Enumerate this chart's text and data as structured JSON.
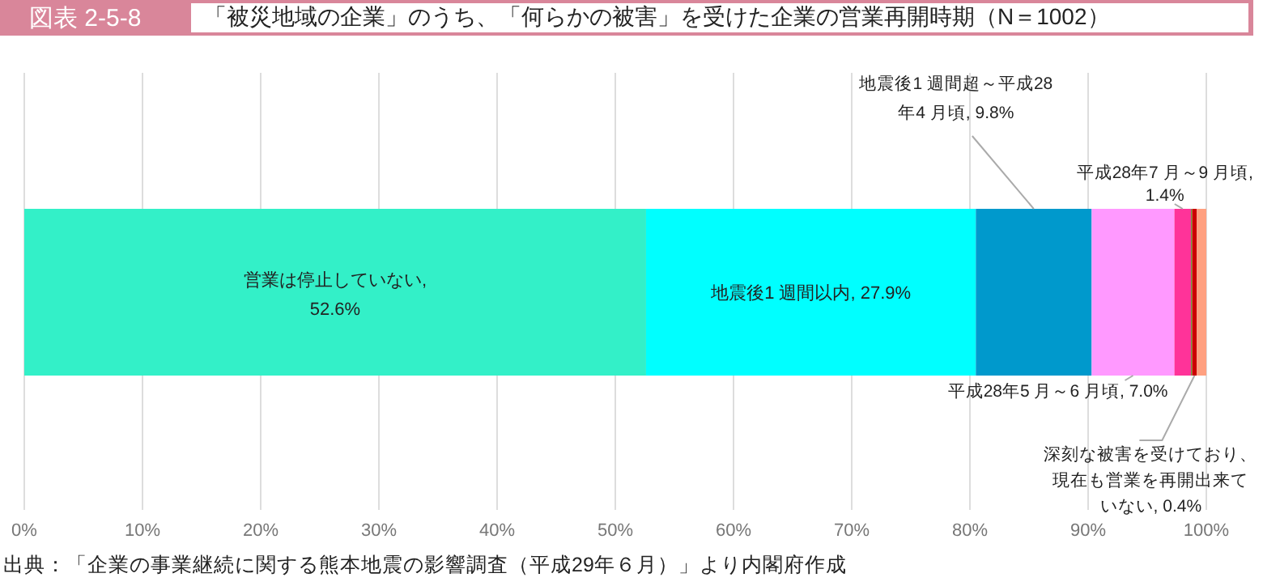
{
  "chart_data": {
    "type": "bar",
    "orientation": "horizontal",
    "stacked": true,
    "title": "「被災地域の企業」のうち、「何らかの被害」を受けた企業の営業再開時期（N＝1002）",
    "annotations": [
      "図表 2-5-8",
      "出典：「企業の事業継続に関する熊本地震の影響調査（平成29年６月）」より内閣府作成"
    ],
    "categories": [
      null
    ],
    "series": [
      {
        "name": "営業は停止していない,",
        "color": "#33f0c8",
        "values": [
          52.6
        ],
        "value_labels": [
          "52.6%"
        ]
      },
      {
        "name": "地震後1 週間以内,",
        "color": "#00ffff",
        "values": [
          27.9
        ],
        "value_labels": [
          "27.9%"
        ]
      },
      {
        "name": "地震後1 週間超～平成28年4 月頃,",
        "color": "#0099cc",
        "values": [
          9.8
        ],
        "value_labels": [
          "9.8%"
        ]
      },
      {
        "name": "平成28年5 月～6 月頃,",
        "color": "#ff99ff",
        "values": [
          7.0
        ],
        "value_labels": [
          "7.0%"
        ]
      },
      {
        "name": "平成28年7 月～9 月頃,",
        "color": "#ff3399",
        "values": [
          1.4
        ],
        "value_labels": [
          "1.4%"
        ]
      },
      {
        "color": "#669933",
        "values": [
          0.1
        ],
        "value_labels": [
          null
        ]
      },
      {
        "name": "深刻な被害を受けており、現在も営業を再開出来ていない,",
        "color": "#cc0000",
        "values": [
          0.4
        ],
        "value_labels": [
          "0.4%"
        ]
      },
      {
        "color": "#ffa080",
        "values": [
          0.8
        ],
        "value_labels": [
          null
        ]
      }
    ],
    "xlim": [
      0,
      100
    ],
    "xticks": [
      {
        "value": 0,
        "label": "0%"
      },
      {
        "value": 10,
        "label": "10%"
      },
      {
        "value": 20,
        "label": "20%"
      },
      {
        "value": 30,
        "label": "30%"
      },
      {
        "value": 40,
        "label": "40%"
      },
      {
        "value": 50,
        "label": "50%"
      },
      {
        "value": 60,
        "label": "60%"
      },
      {
        "value": 70,
        "label": "70%"
      },
      {
        "value": 80,
        "label": "80%"
      },
      {
        "value": 90,
        "label": "90%"
      },
      {
        "value": 100,
        "label": "100%"
      }
    ],
    "grid": "x"
  }
}
